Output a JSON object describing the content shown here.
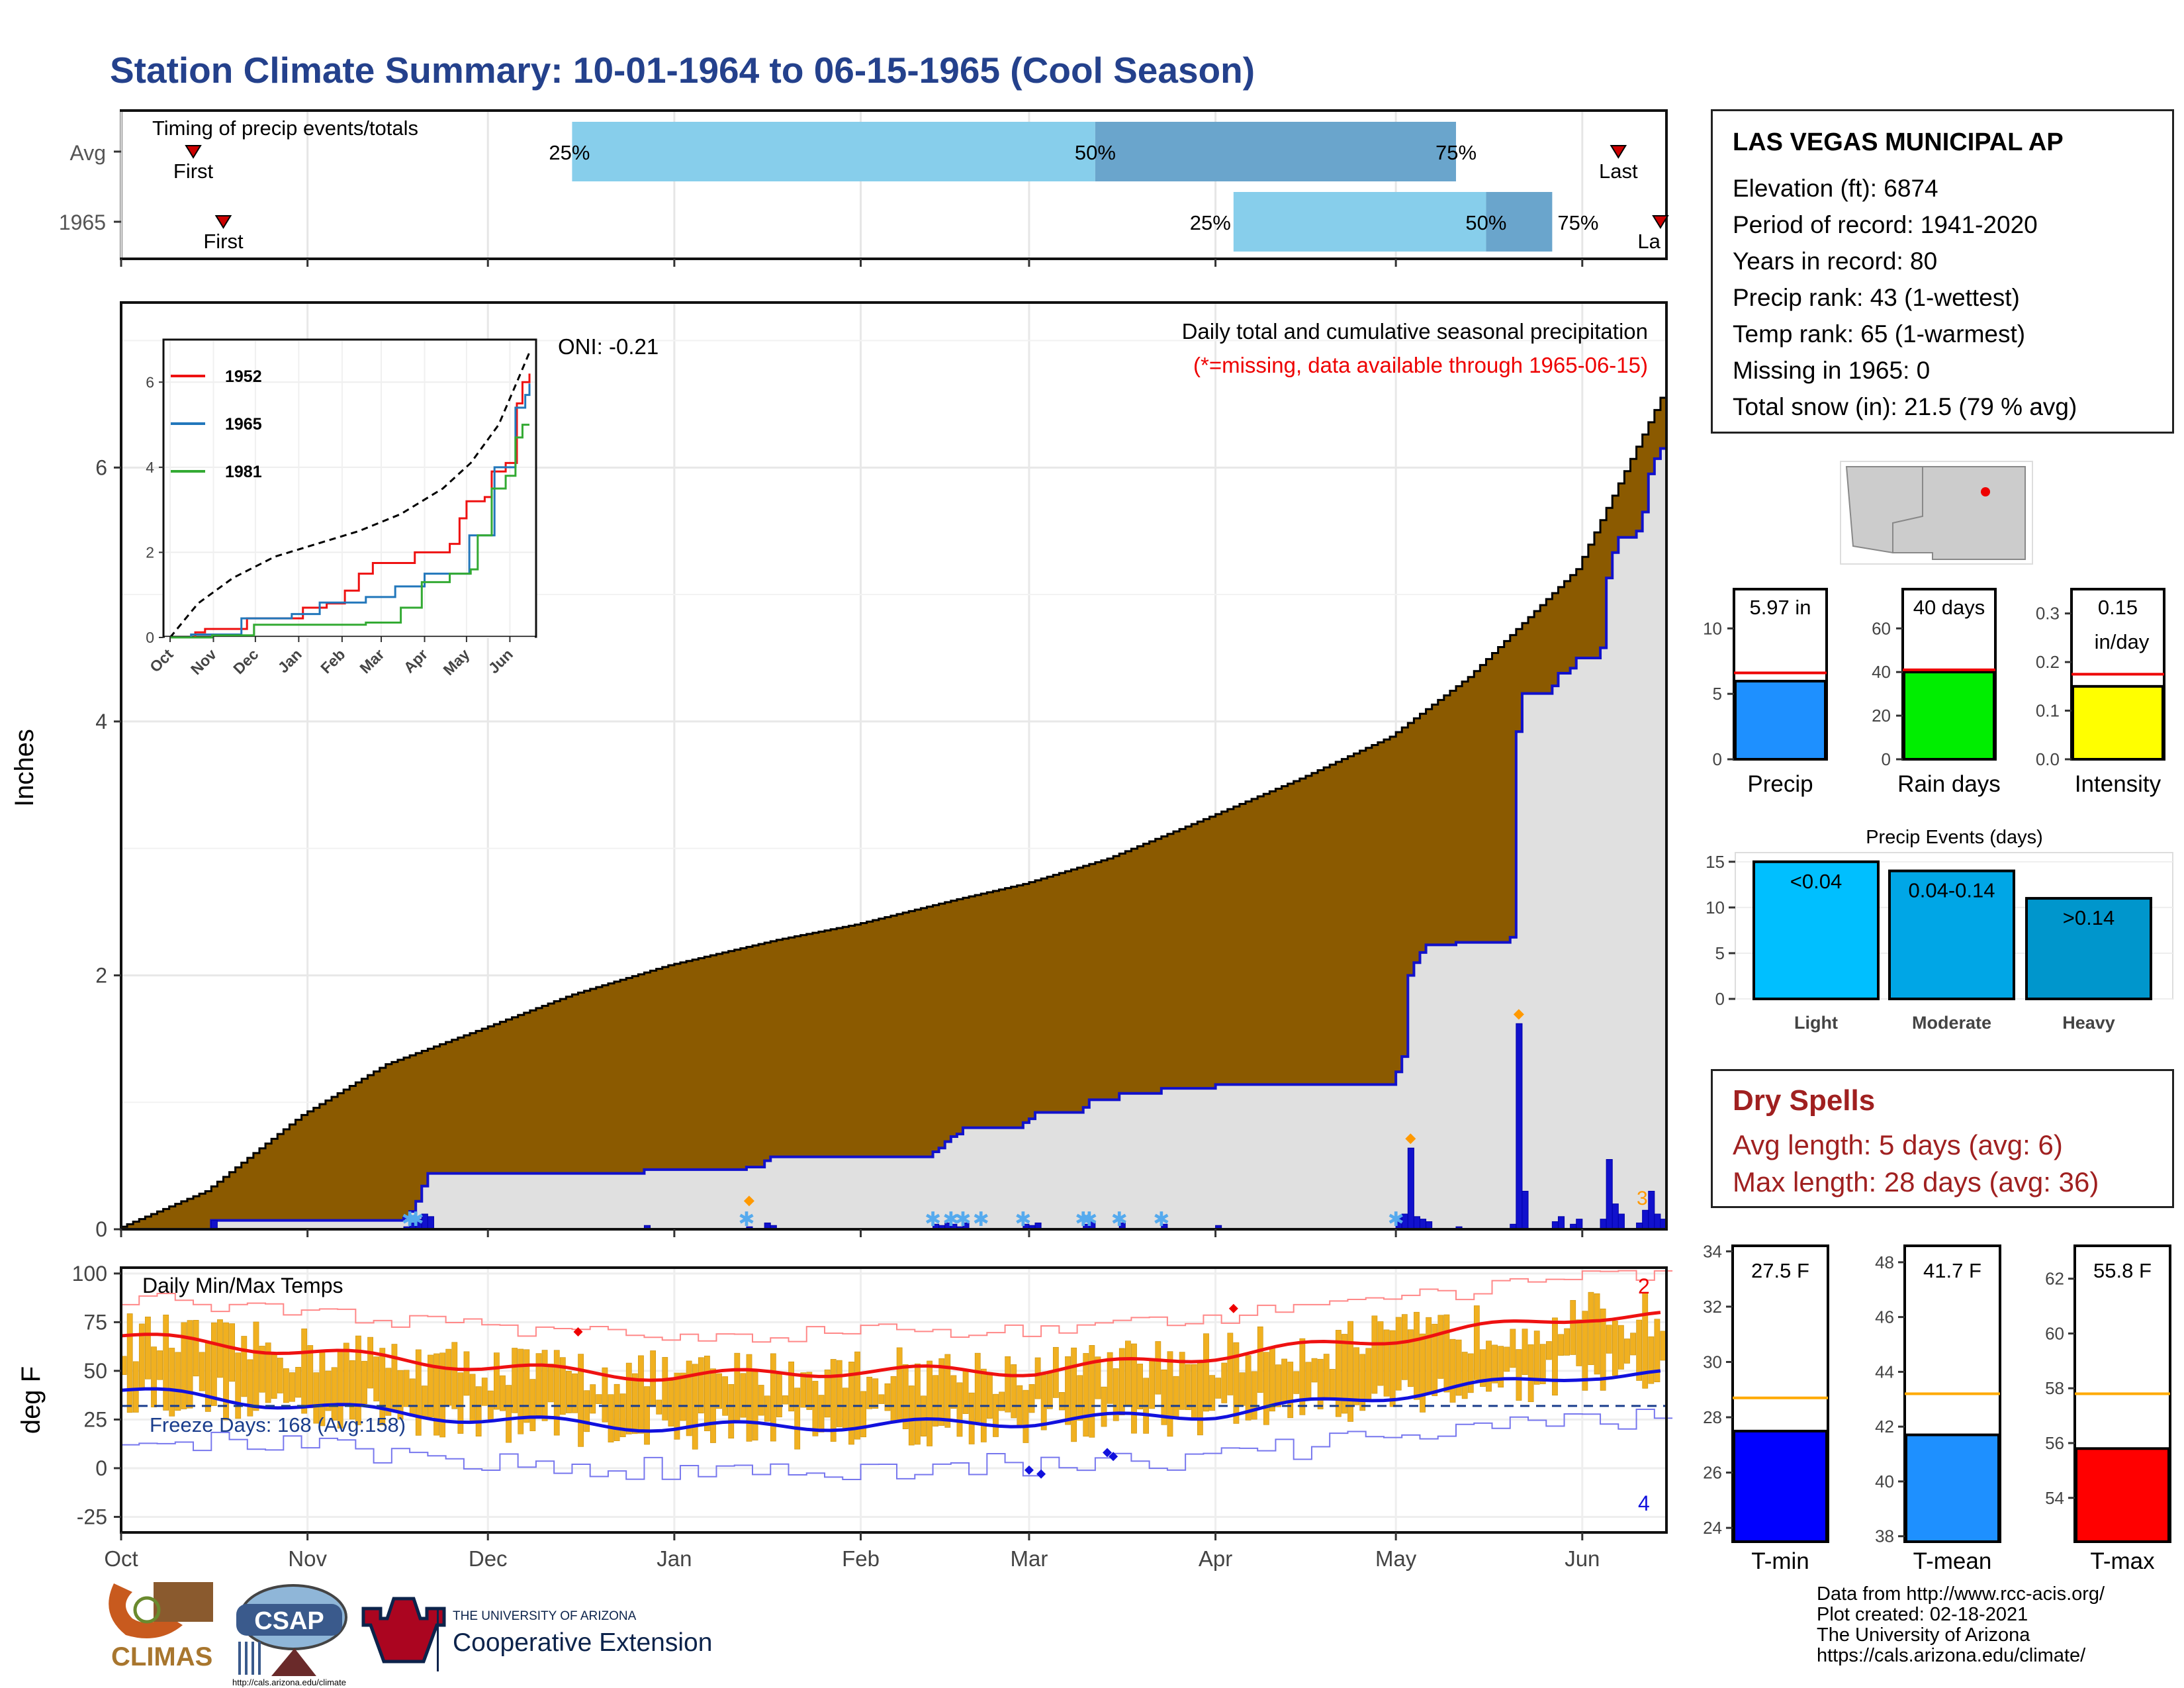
{
  "page_title": "Station Climate Summary: 10-01-1964 to 06-15-1965 (Cool Season)",
  "colors": {
    "title": "#24418c",
    "precip_fill": "#8b5a00",
    "obs_line": "#1111cc",
    "q1_bar": "#87ceeb",
    "q2_bar": "#6aa5cc",
    "temp_bar": "#f0b020",
    "max_line": "#ee1111",
    "min_line": "#1111dd"
  },
  "timing": {
    "label": "Timing of precip events/totals",
    "rows": [
      {
        "name": "Avg",
        "first": "First",
        "last": "Last",
        "p25": "25%",
        "p50": "50%",
        "p75": "75%",
        "first_day": 12,
        "last_day": 249,
        "q25_day": 75,
        "q50_day": 162,
        "q75_day": 222
      },
      {
        "name": "1965",
        "first": "First",
        "last": "La",
        "p25": "25%",
        "p50": "50%",
        "p75": "75%",
        "first_day": 17,
        "last_day": 256,
        "q25_day": 185,
        "q50_day": 227,
        "q75_day": 238
      }
    ]
  },
  "main_chart": {
    "ylabel": "Inches",
    "yticks": [
      "0",
      "2",
      "4",
      "6"
    ],
    "caption": "Daily total and cumulative seasonal precipitation",
    "missing_note": "(*=missing, data available through 1965-06-15)",
    "oni": "ONI: -0.21",
    "corner_count": "3"
  },
  "inset": {
    "legend": [
      "1952",
      "1965",
      "1981"
    ],
    "yticks": [
      "0",
      "2",
      "4",
      "6"
    ],
    "xticks": [
      "Oct",
      "Nov",
      "Dec",
      "Jan",
      "Feb",
      "Mar",
      "Apr",
      "May",
      "Jun"
    ]
  },
  "temp_chart": {
    "ylabel": "deg F",
    "yticks": [
      "100",
      "75",
      "50",
      "25",
      "0",
      "-25"
    ],
    "title": "Daily Min/Max Temps",
    "freeze": "Freeze Days: 168 (Avg:158)",
    "count_max": "2",
    "count_min": "4"
  },
  "x_months": [
    "Oct",
    "Nov",
    "Dec",
    "Jan",
    "Feb",
    "Mar",
    "Apr",
    "May",
    "Jun"
  ],
  "station": {
    "name": "LAS VEGAS MUNICIPAL AP",
    "elevation": "Elevation (ft): 6874",
    "period": "Period of record: 1941-2020",
    "years": "Years in record: 80",
    "precip_rank": "Precip rank: 43 (1-wettest)",
    "temp_rank": "Temp rank: 65 (1-warmest)",
    "missing": "Missing in 1965: 0",
    "snow": "Total snow (in): 21.5 (79 % avg)"
  },
  "precip_stats": [
    {
      "label": "Precip",
      "value_text": "5.97 in",
      "value_text2": "",
      "value": 5.97,
      "avg": 6.6,
      "ymax": 13,
      "ticks": [
        "0",
        "5",
        "10"
      ],
      "color": "#1e90ff"
    },
    {
      "label": "Rain days",
      "value_text": "40 days",
      "value_text2": "",
      "value": 40,
      "avg": 41,
      "ymax": 78,
      "ticks": [
        "0",
        "20",
        "40",
        "60"
      ],
      "color": "#00ee00"
    },
    {
      "label": "Intensity",
      "value_text": "0.15",
      "value_text2": "in/day",
      "value": 0.15,
      "avg": 0.175,
      "ymax": 0.35,
      "ticks": [
        "0.0",
        "0.1",
        "0.2",
        "0.3"
      ],
      "color": "#ffff00"
    }
  ],
  "events": {
    "title": "Precip Events (days)",
    "ticks": [
      "0",
      "5",
      "10",
      "15"
    ],
    "bars": [
      {
        "category": "Light",
        "label": "<0.04",
        "value": 15,
        "color": "#00bfff"
      },
      {
        "category": "Moderate",
        "label": "0.04-0.14",
        "value": 14,
        "color": "#00a6e6"
      },
      {
        "category": "Heavy",
        "label": ">0.14",
        "value": 11,
        "color": "#0096cc"
      }
    ]
  },
  "dry_spells": {
    "title": "Dry Spells",
    "avg_length": "Avg length: 5 days (avg: 6)",
    "max_length": "Max length: 28 days (avg: 36)"
  },
  "temp_stats": [
    {
      "label": "T-min",
      "value_text": "27.5 F",
      "value": 27.5,
      "avg": 28.7,
      "min": 23.5,
      "max": 34.2,
      "ticks": [
        "24",
        "26",
        "28",
        "30",
        "32",
        "34"
      ],
      "color": "#0000ff"
    },
    {
      "label": "T-mean",
      "value_text": "41.7 F",
      "value": 41.7,
      "avg": 43.2,
      "min": 37.8,
      "max": 48.6,
      "ticks": [
        "38",
        "40",
        "42",
        "44",
        "46",
        "48"
      ],
      "color": "#1e90ff"
    },
    {
      "label": "T-max",
      "value_text": "55.8 F",
      "value": 55.8,
      "avg": 57.8,
      "min": 52.4,
      "max": 63.2,
      "ticks": [
        "54",
        "56",
        "58",
        "60",
        "62"
      ],
      "color": "#ff0000"
    }
  ],
  "credits": [
    "Data from http://www.rcc-acis.org/",
    "Plot created: 02-18-2021",
    "The University of Arizona",
    "https://cals.arizona.edu/climate/"
  ],
  "logos": {
    "climas": "CLIMAS",
    "csap": "CSAP",
    "csap_url": "http://cals.arizona.edu/climate",
    "ua_small": "THE UNIVERSITY OF ARIZONA",
    "ua_big": "Cooperative Extension"
  },
  "chart_data": [
    {
      "type": "line",
      "title": "Daily total and cumulative seasonal precipitation",
      "ylabel": "Inches",
      "ylim": [
        0,
        7.3
      ],
      "x": [
        "1964-10-01",
        "1964-11-01",
        "1964-12-01",
        "1965-01-01",
        "1965-02-01",
        "1965-03-01",
        "1965-04-01",
        "1965-05-01",
        "1965-06-15"
      ],
      "series": [
        {
          "values": [
            0,
            1.35,
            1.9,
            2.28,
            2.6,
            2.92,
            3.48,
            4.35,
            6.55
          ]
        },
        {
          "values": [
            0,
            0.07,
            0.45,
            0.55,
            0.82,
            0.95,
            1.5,
            2.4,
            5.97
          ]
        }
      ]
    },
    {
      "type": "bar",
      "title": "Daily Min/Max Temps",
      "ylabel": "deg F",
      "ylim": [
        -30,
        100
      ],
      "x": [
        "Oct",
        "Nov",
        "Dec",
        "Jan",
        "Feb",
        "Mar",
        "Apr",
        "May",
        "Jun"
      ],
      "series": [
        {
          "values": [
            68,
            60,
            52,
            47,
            50,
            50,
            58,
            67,
            78
          ]
        },
        {
          "values": [
            40,
            32,
            25,
            21,
            22,
            24,
            28,
            38,
            48
          ]
        }
      ]
    },
    {
      "type": "bar",
      "categories": [
        "Precip",
        "Rain days",
        "Intensity"
      ],
      "values": [
        5.97,
        40,
        0.15
      ]
    },
    {
      "type": "bar",
      "title": "Precip Events (days)",
      "categories": [
        "Light",
        "Moderate",
        "Heavy"
      ],
      "values": [
        15,
        14,
        11
      ]
    },
    {
      "type": "bar",
      "categories": [
        "T-min",
        "T-mean",
        "T-max"
      ],
      "values": [
        27.5,
        41.7,
        55.8
      ]
    }
  ]
}
